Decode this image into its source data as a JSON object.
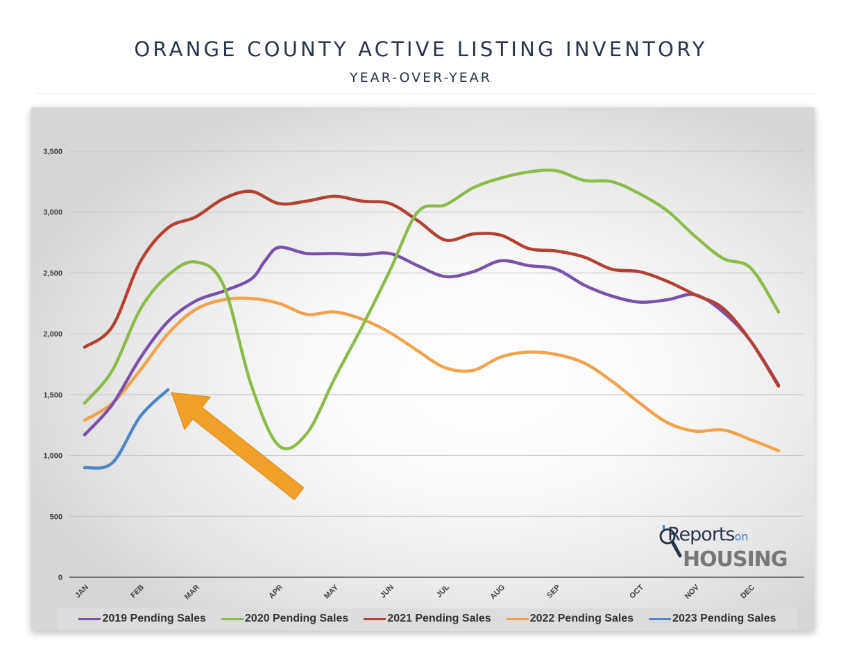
{
  "header": {
    "title": "ORANGE COUNTY ACTIVE LISTING INVENTORY",
    "subtitle": "YEAR-OVER-YEAR"
  },
  "logo": {
    "line1": "Reports",
    "line1_small": "on",
    "line2": "HOUSING"
  },
  "chart_data": {
    "type": "line",
    "title": "ORANGE COUNTY ACTIVE LISTING INVENTORY",
    "subtitle": "YEAR-OVER-YEAR",
    "ylim": [
      0,
      3500
    ],
    "yticks": [
      0,
      500,
      1000,
      1500,
      2000,
      2500,
      3000,
      3500
    ],
    "ytick_labels": [
      "0",
      "500",
      "1,000",
      "1,500",
      "2,000",
      "2,500",
      "3,000",
      "3,500"
    ],
    "x_tick_labels": [
      {
        "label": "JAN",
        "week": 0
      },
      {
        "label": "FEB",
        "week": 4
      },
      {
        "label": "MAR",
        "week": 8
      },
      {
        "label": "APR",
        "week": 14
      },
      {
        "label": "MAY",
        "week": 18
      },
      {
        "label": "JUN",
        "week": 22
      },
      {
        "label": "JUL",
        "week": 26
      },
      {
        "label": "AUG",
        "week": 30
      },
      {
        "label": "SEP",
        "week": 34
      },
      {
        "label": "OCT",
        "week": 40
      },
      {
        "label": "NOV",
        "week": 44
      },
      {
        "label": "DEC",
        "week": 48
      }
    ],
    "x_max": 51,
    "grid": true,
    "legend_position": "bottom",
    "series": [
      {
        "name": "2019 Pending Sales",
        "color": "#7a52a8",
        "x": [
          0,
          2,
          4,
          6,
          8,
          10,
          12,
          13,
          14,
          16,
          18,
          20,
          22,
          24,
          26,
          28,
          30,
          32,
          34,
          36,
          38,
          40,
          42,
          44,
          46,
          48,
          50
        ],
        "values": [
          1170,
          1420,
          1800,
          2100,
          2270,
          2350,
          2450,
          2600,
          2710,
          2660,
          2660,
          2650,
          2660,
          2560,
          2470,
          2510,
          2600,
          2560,
          2530,
          2400,
          2310,
          2260,
          2280,
          2320,
          2180,
          1940,
          1580
        ]
      },
      {
        "name": "2020 Pending Sales",
        "color": "#8bbb4c",
        "x": [
          0,
          2,
          4,
          6,
          8,
          10,
          12,
          14,
          16,
          18,
          20,
          22,
          24,
          26,
          28,
          30,
          32,
          34,
          36,
          38,
          40,
          42,
          44,
          46,
          48,
          50
        ],
        "values": [
          1430,
          1700,
          2200,
          2480,
          2590,
          2400,
          1580,
          1080,
          1180,
          1630,
          2060,
          2520,
          3000,
          3060,
          3200,
          3280,
          3330,
          3340,
          3260,
          3250,
          3150,
          3010,
          2800,
          2620,
          2540,
          2180
        ]
      },
      {
        "name": "2021 Pending Sales",
        "color": "#b34134",
        "x": [
          0,
          2,
          4,
          6,
          8,
          10,
          12,
          14,
          16,
          18,
          20,
          22,
          24,
          26,
          28,
          30,
          32,
          34,
          36,
          38,
          40,
          42,
          44,
          46,
          48,
          50
        ],
        "values": [
          1890,
          2060,
          2590,
          2870,
          2960,
          3110,
          3170,
          3070,
          3090,
          3130,
          3090,
          3070,
          2930,
          2770,
          2820,
          2810,
          2700,
          2680,
          2630,
          2530,
          2510,
          2430,
          2320,
          2210,
          1940,
          1570
        ]
      },
      {
        "name": "2022 Pending Sales",
        "color": "#f0a24f",
        "x": [
          0,
          2,
          4,
          6,
          8,
          10,
          12,
          14,
          16,
          18,
          20,
          22,
          24,
          26,
          28,
          30,
          32,
          34,
          36,
          38,
          40,
          42,
          44,
          46,
          48,
          50
        ],
        "values": [
          1290,
          1430,
          1700,
          2000,
          2200,
          2280,
          2290,
          2250,
          2160,
          2180,
          2120,
          2010,
          1860,
          1720,
          1700,
          1810,
          1850,
          1830,
          1760,
          1610,
          1430,
          1270,
          1200,
          1210,
          1130,
          1040
        ]
      },
      {
        "name": "2023 Pending Sales",
        "color": "#4f86c3",
        "x": [
          0,
          2,
          4,
          6
        ],
        "values": [
          900,
          940,
          1320,
          1540
        ]
      }
    ],
    "annotations": [
      {
        "type": "arrow",
        "color": "#f0a028",
        "points_to": "2023 Pending Sales latest value"
      }
    ]
  }
}
